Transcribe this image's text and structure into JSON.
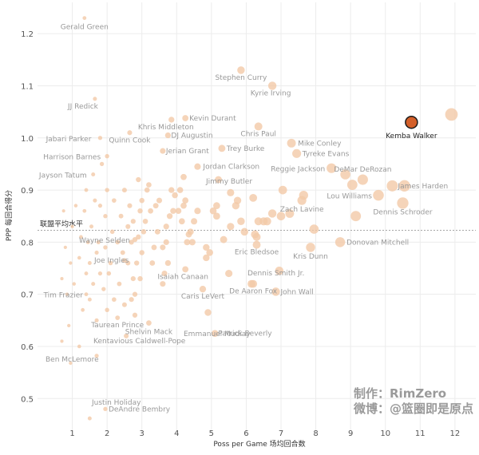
{
  "chart_data": {
    "type": "scatter",
    "title": "",
    "xlabel": "Poss per Game 场均回合数",
    "ylabel": "PPP 每回合得分",
    "xlim": [
      0,
      12.6
    ],
    "ylim": [
      0.43,
      1.26
    ],
    "xticks": [
      1,
      2,
      3,
      4,
      5,
      6,
      7,
      8,
      9,
      10,
      11,
      12
    ],
    "yticks": [
      0.5,
      0.6,
      0.7,
      0.8,
      0.9,
      1.0,
      1.1,
      1.2
    ],
    "grid": true,
    "league_average": {
      "label": "联盟平均水平",
      "y": 0.823
    },
    "base_color": "#f2c9a8",
    "highlight_color": "#d4602a",
    "highlight": {
      "name": "Kemba Walker",
      "x": 10.75,
      "y": 1.03
    },
    "labeled_points": [
      {
        "name": "Gerald Green",
        "x": 1.35,
        "y": 1.23
      },
      {
        "name": "Stephen Curry",
        "x": 5.85,
        "y": 1.13
      },
      {
        "name": "Kyrie Irving",
        "x": 6.75,
        "y": 1.1
      },
      {
        "name": "JJ Redick",
        "x": 1.65,
        "y": 1.075
      },
      {
        "name": "Khris Middleton",
        "x": 3.85,
        "y": 1.035
      },
      {
        "name": "Kevin Durant",
        "x": 4.25,
        "y": 1.038
      },
      {
        "name": "Jabari Parker",
        "x": 1.8,
        "y": 1.0
      },
      {
        "name": "Quinn Cook",
        "x": 2.65,
        "y": 1.01
      },
      {
        "name": "DJ Augustin",
        "x": 3.75,
        "y": 1.005
      },
      {
        "name": "Chris Paul",
        "x": 6.35,
        "y": 1.022
      },
      {
        "name": "Mike Conley",
        "x": 7.3,
        "y": 0.99
      },
      {
        "name": "Harrison Barnes",
        "x": 2.0,
        "y": 0.965
      },
      {
        "name": "Jerian Grant",
        "x": 3.6,
        "y": 0.975
      },
      {
        "name": "Trey Burke",
        "x": 5.3,
        "y": 0.98
      },
      {
        "name": "Tyreke Evans",
        "x": 7.45,
        "y": 0.97
      },
      {
        "name": "Jayson Tatum",
        "x": 1.6,
        "y": 0.93
      },
      {
        "name": "Jordan Clarkson",
        "x": 4.6,
        "y": 0.945
      },
      {
        "name": "Reggie Jackson",
        "x": 8.45,
        "y": 0.942
      },
      {
        "name": "DeMar DeRozan",
        "x": 9.35,
        "y": 0.92
      },
      {
        "name": "Jimmy Butler",
        "x": 5.55,
        "y": 0.895
      },
      {
        "name": "James Harden",
        "x": 10.2,
        "y": 0.908
      },
      {
        "name": "Lou Williams",
        "x": 9.8,
        "y": 0.89
      },
      {
        "name": "Zach Lavine",
        "x": 7.6,
        "y": 0.88
      },
      {
        "name": "Dennis Schroder",
        "x": 10.5,
        "y": 0.875
      },
      {
        "name": "Wayne Selden",
        "x": 2.8,
        "y": 0.805
      },
      {
        "name": "Donovan Mitchell",
        "x": 8.7,
        "y": 0.8
      },
      {
        "name": "Eric Bledsoe",
        "x": 6.3,
        "y": 0.795
      },
      {
        "name": "Kris Dunn",
        "x": 7.85,
        "y": 0.79
      },
      {
        "name": "Joe Ingles",
        "x": 2.5,
        "y": 0.765
      },
      {
        "name": "Isaiah Canaan",
        "x": 4.25,
        "y": 0.748
      },
      {
        "name": "Dennis Smith Jr.",
        "x": 6.95,
        "y": 0.745
      },
      {
        "name": "Tim Frazier",
        "x": 1.4,
        "y": 0.7
      },
      {
        "name": "Caris LeVert",
        "x": 4.75,
        "y": 0.71
      },
      {
        "name": "John Wall",
        "x": 6.85,
        "y": 0.705
      },
      {
        "name": "De Aaron Fox",
        "x": 6.2,
        "y": 0.72
      },
      {
        "name": "Shelvin Mack",
        "x": 3.2,
        "y": 0.645
      },
      {
        "name": "Taurean Prince",
        "x": 2.3,
        "y": 0.655
      },
      {
        "name": "Patrick Beverly",
        "x": 5.1,
        "y": 0.625
      },
      {
        "name": "Emmanuel Mudiay",
        "x": 4.9,
        "y": 0.665
      },
      {
        "name": "Kentavious Caldwell-Pope",
        "x": 1.7,
        "y": 0.582
      },
      {
        "name": "Ben McLemore",
        "x": 0.95,
        "y": 0.568
      },
      {
        "name": "DeAndre Bembry",
        "x": 1.95,
        "y": 0.48
      },
      {
        "name": "Justin Holiday",
        "x": 1.5,
        "y": 0.462
      }
    ],
    "other_points": [
      [
        11.9,
        1.045
      ],
      [
        10.55,
        0.908
      ],
      [
        9.15,
        0.85
      ],
      [
        9.05,
        0.91
      ],
      [
        8.85,
        0.93
      ],
      [
        7.95,
        0.825
      ],
      [
        7.65,
        0.89
      ],
      [
        7.25,
        0.855
      ],
      [
        7.05,
        0.9
      ],
      [
        7.0,
        0.85
      ],
      [
        6.75,
        0.855
      ],
      [
        6.6,
        0.84
      ],
      [
        6.5,
        0.84
      ],
      [
        6.35,
        0.84
      ],
      [
        6.3,
        0.81
      ],
      [
        6.2,
        0.885
      ],
      [
        6.25,
        0.815
      ],
      [
        6.15,
        0.72
      ],
      [
        5.95,
        0.82
      ],
      [
        5.85,
        0.84
      ],
      [
        5.75,
        0.88
      ],
      [
        5.55,
        0.83
      ],
      [
        5.7,
        0.87
      ],
      [
        5.5,
        0.74
      ],
      [
        5.35,
        0.805
      ],
      [
        5.15,
        0.85
      ],
      [
        5.05,
        0.86
      ],
      [
        5.2,
        0.92
      ],
      [
        5.15,
        0.87
      ],
      [
        4.95,
        0.78
      ],
      [
        4.85,
        0.79
      ],
      [
        4.85,
        0.77
      ],
      [
        4.6,
        0.86
      ],
      [
        4.5,
        0.84
      ],
      [
        4.45,
        0.8
      ],
      [
        4.4,
        0.82
      ],
      [
        4.35,
        0.815
      ],
      [
        4.3,
        0.8
      ],
      [
        4.2,
        0.925
      ],
      [
        4.25,
        0.88
      ],
      [
        4.2,
        0.87
      ],
      [
        4.15,
        0.84
      ],
      [
        4.1,
        0.9
      ],
      [
        4.05,
        0.86
      ],
      [
        3.95,
        0.89
      ],
      [
        3.9,
        0.86
      ],
      [
        3.85,
        0.9
      ],
      [
        3.8,
        0.85
      ],
      [
        3.7,
        0.83
      ],
      [
        3.7,
        0.8
      ],
      [
        3.75,
        0.76
      ],
      [
        3.65,
        0.74
      ],
      [
        3.6,
        0.72
      ],
      [
        3.6,
        0.79
      ],
      [
        3.5,
        0.88
      ],
      [
        3.45,
        0.82
      ],
      [
        3.4,
        0.87
      ],
      [
        3.35,
        0.79
      ],
      [
        3.3,
        0.76
      ],
      [
        3.25,
        0.86
      ],
      [
        3.2,
        0.91
      ],
      [
        3.15,
        0.9
      ],
      [
        3.1,
        0.84
      ],
      [
        3.05,
        0.82
      ],
      [
        3.0,
        0.88
      ],
      [
        3.0,
        0.78
      ],
      [
        2.95,
        0.86
      ],
      [
        2.95,
        0.73
      ],
      [
        2.9,
        0.92
      ],
      [
        2.9,
        0.81
      ],
      [
        2.85,
        0.76
      ],
      [
        2.8,
        0.7
      ],
      [
        2.8,
        0.66
      ],
      [
        2.75,
        0.84
      ],
      [
        2.75,
        0.73
      ],
      [
        2.7,
        0.8
      ],
      [
        2.7,
        0.69
      ],
      [
        2.65,
        0.87
      ],
      [
        2.6,
        0.83
      ],
      [
        2.6,
        0.76
      ],
      [
        2.55,
        0.62
      ],
      [
        2.5,
        0.9
      ],
      [
        2.5,
        0.68
      ],
      [
        2.45,
        0.78
      ],
      [
        2.4,
        0.85
      ],
      [
        2.35,
        0.72
      ],
      [
        2.3,
        0.8
      ],
      [
        2.2,
        0.88
      ],
      [
        2.2,
        0.69
      ],
      [
        2.15,
        0.82
      ],
      [
        2.1,
        0.76
      ],
      [
        2.05,
        0.74
      ],
      [
        2.0,
        0.9
      ],
      [
        2.0,
        0.67
      ],
      [
        1.95,
        0.85
      ],
      [
        1.95,
        0.79
      ],
      [
        1.9,
        0.71
      ],
      [
        1.85,
        0.95
      ],
      [
        1.8,
        0.87
      ],
      [
        1.8,
        0.74
      ],
      [
        1.75,
        0.8
      ],
      [
        1.7,
        0.78
      ],
      [
        1.7,
        0.65
      ],
      [
        1.65,
        0.88
      ],
      [
        1.6,
        0.72
      ],
      [
        1.55,
        0.83
      ],
      [
        1.5,
        0.76
      ],
      [
        1.5,
        0.69
      ],
      [
        1.45,
        0.8
      ],
      [
        1.4,
        0.9
      ],
      [
        1.4,
        0.74
      ],
      [
        1.35,
        0.86
      ],
      [
        1.3,
        0.67
      ],
      [
        1.25,
        0.81
      ],
      [
        1.2,
        0.77
      ],
      [
        1.2,
        0.6
      ],
      [
        1.1,
        0.87
      ],
      [
        1.05,
        0.72
      ],
      [
        1.0,
        0.83
      ],
      [
        0.95,
        0.76
      ],
      [
        0.9,
        0.64
      ],
      [
        0.85,
        0.7
      ],
      [
        0.8,
        0.79
      ],
      [
        0.75,
        0.86
      ],
      [
        0.7,
        0.61
      ],
      [
        0.7,
        0.73
      ]
    ]
  },
  "watermark": {
    "line1": "制作：RimZero",
    "line2": "微博：@篮圈即是原点"
  }
}
